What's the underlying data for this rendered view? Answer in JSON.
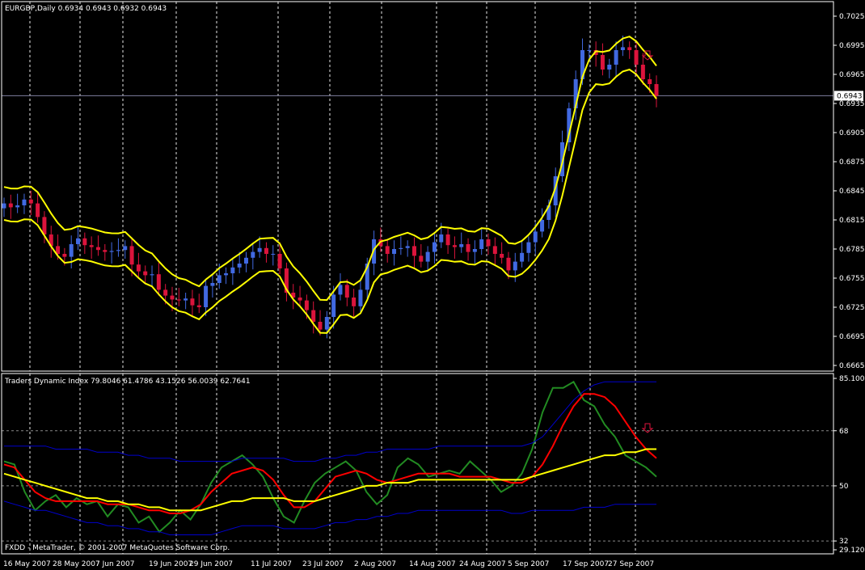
{
  "colors": {
    "background": "#000000",
    "grid": "#ffffff",
    "bull": "#4169e1",
    "bear": "#dc143c",
    "envelope": "#ffff00",
    "rsi": "#228b22",
    "signal": "#ff0000",
    "baseline": "#ffff00",
    "bands": "#0000cd",
    "hline": "#7f7f9f"
  },
  "chart_data": [
    {
      "type": "candlestick",
      "title": "EURGBP,Daily  0.6934 0.6943 0.6932 0.6943",
      "yticks": [
        "0.7025",
        "0.6995",
        "0.6965",
        "0.6935",
        "0.6905",
        "0.6875",
        "0.6845",
        "0.6815",
        "0.6785",
        "0.6755",
        "0.6725",
        "0.6695",
        "0.6665"
      ],
      "ylim": [
        0.6665,
        0.7025
      ],
      "current_price": "0.6943",
      "closes": [
        0.6832,
        0.6828,
        0.683,
        0.6836,
        0.6832,
        0.6818,
        0.68,
        0.6788,
        0.678,
        0.6777,
        0.679,
        0.6796,
        0.6789,
        0.6787,
        0.6784,
        0.6782,
        0.6783,
        0.6784,
        0.6788,
        0.6769,
        0.6762,
        0.6758,
        0.6759,
        0.6743,
        0.6737,
        0.6733,
        0.6732,
        0.6734,
        0.6727,
        0.6725,
        0.6747,
        0.675,
        0.6758,
        0.676,
        0.6766,
        0.677,
        0.6776,
        0.6782,
        0.6786,
        0.678,
        0.678,
        0.6765,
        0.674,
        0.6735,
        0.6732,
        0.6722,
        0.671,
        0.6702,
        0.6715,
        0.6738,
        0.6748,
        0.6735,
        0.6726,
        0.6743,
        0.677,
        0.6795,
        0.6788,
        0.678,
        0.6785,
        0.6786,
        0.6788,
        0.6778,
        0.6772,
        0.6782,
        0.6792,
        0.68,
        0.6789,
        0.6787,
        0.679,
        0.6782,
        0.6785,
        0.6795,
        0.6788,
        0.678,
        0.6776,
        0.6763,
        0.6772,
        0.6781,
        0.6792,
        0.6803,
        0.6815,
        0.683,
        0.686,
        0.6895,
        0.693,
        0.696,
        0.699,
        0.699,
        0.6985,
        0.697,
        0.6975,
        0.699,
        0.6993,
        0.699,
        0.6975,
        0.696,
        0.6955,
        0.6943
      ],
      "x_labels": [
        "16 May 2007",
        "28 May 2007",
        "7 Jun 2007",
        "19 Jun 2007",
        "29 Jun 2007",
        "11 Jul 2007",
        "23 Jul 2007",
        "2 Aug 2007",
        "14 Aug 2007",
        "24 Aug 2007",
        "5 Sep 2007",
        "17 Sep 2007",
        "27 Sep 2007"
      ],
      "series": [
        {
          "type": "candles",
          "up_color": "#4169e1",
          "down_color": "#dc143c"
        },
        {
          "type": "line",
          "color": "#ffff00"
        },
        {
          "type": "line",
          "color": "#ffff00"
        }
      ]
    },
    {
      "type": "line",
      "title": "Traders Dynamic Index 79.8046 61.4786 43.1526 56.0039 62.7641",
      "yticks": [
        "85.1001",
        "68",
        "50",
        "32",
        "29.1206"
      ],
      "ylim": [
        29.1206,
        85.1001
      ],
      "levels": [
        68,
        50,
        32
      ],
      "x_labels": [
        "16 May 2007",
        "28 May 2007",
        "7 Jun 2007",
        "19 Jun 2007",
        "29 Jun 2007",
        "11 Jul 2007",
        "23 Jul 2007",
        "2 Aug 2007",
        "14 Aug 2007",
        "24 Aug 2007",
        "5 Sep 2007",
        "17 Sep 2007",
        "27 Sep 2007"
      ],
      "series": [
        {
          "type": "line",
          "color": "#228b22",
          "values": [
            58,
            57,
            48,
            42,
            45,
            47,
            43,
            46,
            44,
            45,
            40,
            44,
            43,
            38,
            40,
            35,
            38,
            42,
            39,
            44,
            51,
            56,
            58,
            60,
            57,
            53,
            46,
            40,
            38,
            45,
            51,
            54,
            56,
            58,
            55,
            48,
            44,
            47,
            56,
            59,
            57,
            53,
            54,
            55,
            54,
            58,
            55,
            52,
            48,
            50,
            54,
            62,
            74,
            82,
            82,
            84,
            78,
            76,
            70,
            66,
            60,
            58,
            56,
            53
          ]
        },
        {
          "type": "line",
          "color": "#ff0000",
          "values": [
            57,
            56,
            52,
            48,
            46,
            45,
            45,
            45,
            45,
            45,
            44,
            44,
            44,
            43,
            42,
            42,
            41,
            41,
            42,
            44,
            48,
            51,
            54,
            55,
            56,
            55,
            52,
            47,
            43,
            43,
            45,
            49,
            53,
            54,
            55,
            54,
            52,
            51,
            52,
            53,
            54,
            54,
            54,
            54,
            53,
            53,
            53,
            53,
            52,
            51,
            51,
            53,
            57,
            63,
            70,
            76,
            80,
            80,
            79,
            76,
            71,
            66,
            62,
            59
          ]
        },
        {
          "type": "line",
          "color": "#ffff00",
          "values": [
            54,
            53,
            52,
            51,
            50,
            49,
            48,
            47,
            46,
            46,
            45,
            45,
            44,
            44,
            43,
            43,
            42,
            42,
            42,
            42,
            43,
            44,
            45,
            45,
            46,
            46,
            46,
            46,
            45,
            45,
            45,
            46,
            47,
            48,
            49,
            50,
            50,
            51,
            51,
            51,
            52,
            52,
            52,
            52,
            52,
            52,
            52,
            52,
            52,
            52,
            52,
            53,
            54,
            55,
            56,
            57,
            58,
            59,
            60,
            60,
            61,
            61,
            62,
            62
          ]
        },
        {
          "type": "line",
          "color": "#0000cd",
          "values": [
            63,
            63,
            63,
            63,
            63,
            62,
            62,
            62,
            62,
            61,
            61,
            61,
            60,
            60,
            59,
            59,
            59,
            58,
            58,
            58,
            58,
            58,
            58,
            59,
            59,
            59,
            59,
            59,
            58,
            58,
            58,
            59,
            59,
            60,
            60,
            61,
            61,
            62,
            62,
            62,
            62,
            62,
            63,
            63,
            63,
            63,
            63,
            63,
            63,
            63,
            63,
            64,
            66,
            70,
            74,
            78,
            81,
            83,
            84,
            84,
            84,
            84,
            84,
            84
          ]
        },
        {
          "type": "line",
          "color": "#0000cd",
          "values": [
            45,
            44,
            43,
            42,
            42,
            41,
            40,
            39,
            38,
            38,
            37,
            37,
            36,
            36,
            35,
            35,
            34,
            34,
            34,
            34,
            34,
            35,
            36,
            37,
            37,
            37,
            37,
            36,
            36,
            36,
            36,
            37,
            38,
            38,
            39,
            39,
            40,
            40,
            41,
            41,
            42,
            42,
            42,
            42,
            42,
            42,
            42,
            42,
            42,
            41,
            41,
            42,
            42,
            42,
            42,
            42,
            43,
            43,
            43,
            44,
            44,
            44,
            44,
            44
          ]
        }
      ]
    }
  ],
  "footer": "FXDD - MetaTrader, © 2001-2007 MetaQuotes Software Corp."
}
